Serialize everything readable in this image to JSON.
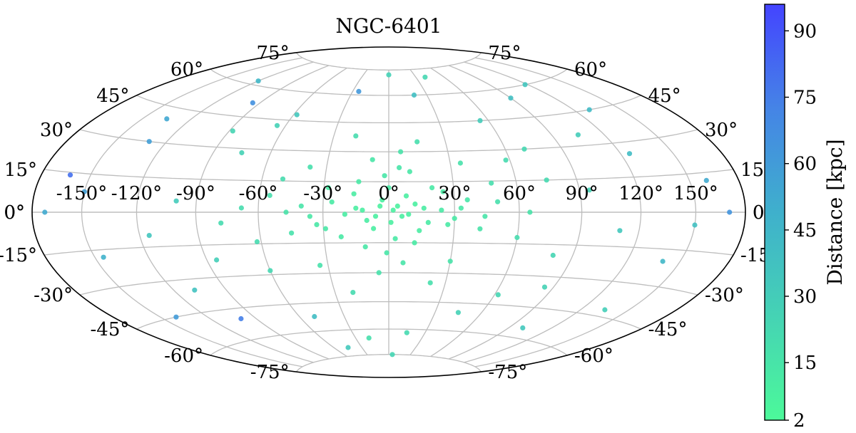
{
  "chart_data": {
    "type": "scatter",
    "projection": "hammer-aitoff",
    "title": "NGC-6401",
    "xlabel": "",
    "ylabel": "",
    "xlim": [
      -180,
      180
    ],
    "ylim": [
      -90,
      90
    ],
    "grid": true,
    "lon_ticks": [
      -150,
      -120,
      -90,
      -60,
      -30,
      0,
      30,
      60,
      90,
      120,
      150
    ],
    "lon_tick_labels": [
      "-150°",
      "-120°",
      "-90°",
      "-60°",
      "-30°",
      "0°",
      "30°",
      "60°",
      "90°",
      "120°",
      "150°"
    ],
    "lat_ticks": [
      -75,
      -60,
      -45,
      -30,
      -15,
      0,
      15,
      30,
      45,
      60,
      75
    ],
    "lat_tick_labels": [
      "-75°",
      "-60°",
      "-45°",
      "-30°",
      "-15°",
      "0°",
      "15°",
      "30°",
      "45°",
      "60°",
      "75°"
    ],
    "colorbar": {
      "label": "Distance [kpc]",
      "min": 2,
      "max": 96,
      "ticks": [
        2,
        15,
        30,
        45,
        60,
        75,
        90
      ],
      "tick_labels": [
        "2",
        "15",
        "30",
        "45",
        "60",
        "75",
        "90"
      ],
      "color_low": "#4cf99a",
      "color_high": "#4444ff"
    },
    "series": [
      {
        "points": [
          {
            "lon": 2,
            "lat": 1,
            "d": 8
          },
          {
            "lon": -4,
            "lat": 3,
            "d": 7
          },
          {
            "lon": 6,
            "lat": -2,
            "d": 9
          },
          {
            "lon": -10,
            "lat": -4,
            "d": 10
          },
          {
            "lon": 12,
            "lat": 4,
            "d": 8
          },
          {
            "lon": -15,
            "lat": 2,
            "d": 9
          },
          {
            "lon": 18,
            "lat": -5,
            "d": 11
          },
          {
            "lon": -20,
            "lat": -1,
            "d": 10
          },
          {
            "lon": 24,
            "lat": 1,
            "d": 12
          },
          {
            "lon": -26,
            "lat": 5,
            "d": 11
          },
          {
            "lon": 30,
            "lat": -3,
            "d": 12
          },
          {
            "lon": -33,
            "lat": -6,
            "d": 13
          },
          {
            "lon": 8,
            "lat": 8,
            "d": 9
          },
          {
            "lon": -7,
            "lat": -8,
            "d": 9
          },
          {
            "lon": 14,
            "lat": -9,
            "d": 10
          },
          {
            "lon": -16,
            "lat": 9,
            "d": 10
          },
          {
            "lon": 0,
            "lat": 12,
            "d": 11
          },
          {
            "lon": 3,
            "lat": -13,
            "d": 12
          },
          {
            "lon": -2,
            "lat": 18,
            "d": 14
          },
          {
            "lon": 5,
            "lat": 22,
            "d": 15
          },
          {
            "lon": -8,
            "lat": 26,
            "d": 14
          },
          {
            "lon": 10,
            "lat": 20,
            "d": 13
          },
          {
            "lon": -1,
            "lat": -20,
            "d": 14
          },
          {
            "lon": 7,
            "lat": -25,
            "d": 15
          },
          {
            "lon": -11,
            "lat": -17,
            "d": 13
          },
          {
            "lon": 36,
            "lat": 6,
            "d": 14
          },
          {
            "lon": -40,
            "lat": 3,
            "d": 15
          },
          {
            "lon": 42,
            "lat": -8,
            "d": 16
          },
          {
            "lon": -45,
            "lat": -10,
            "d": 17
          },
          {
            "lon": 20,
            "lat": 12,
            "d": 12
          },
          {
            "lon": -22,
            "lat": -12,
            "d": 12
          },
          {
            "lon": 1,
            "lat": -5,
            "d": 8
          },
          {
            "lon": -3,
            "lat": 6,
            "d": 8
          },
          {
            "lon": 4,
            "lat": 3,
            "d": 7
          },
          {
            "lon": -6,
            "lat": -2,
            "d": 8
          },
          {
            "lon": 9,
            "lat": -1,
            "d": 9
          },
          {
            "lon": -12,
            "lat": 1,
            "d": 9
          },
          {
            "lon": 16,
            "lat": 2,
            "d": 10
          },
          {
            "lon": 27,
            "lat": -6,
            "d": 12
          },
          {
            "lon": -29,
            "lat": -8,
            "d": 13
          },
          {
            "lon": 50,
            "lat": 5,
            "d": 18
          },
          {
            "lon": -55,
            "lat": 8,
            "d": 19
          },
          {
            "lon": 60,
            "lat": -12,
            "d": 20
          },
          {
            "lon": -62,
            "lat": -14,
            "d": 21
          },
          {
            "lon": 48,
            "lat": 14,
            "d": 19
          },
          {
            "lon": -50,
            "lat": 16,
            "d": 20
          },
          {
            "lon": 35,
            "lat": 24,
            "d": 17
          },
          {
            "lon": -38,
            "lat": 22,
            "d": 18
          },
          {
            "lon": 30,
            "lat": -24,
            "d": 16
          },
          {
            "lon": -34,
            "lat": -26,
            "d": 17
          },
          {
            "lon": 15,
            "lat": 35,
            "d": 19
          },
          {
            "lon": -18,
            "lat": 38,
            "d": 20
          },
          {
            "lon": 22,
            "lat": -35,
            "d": 18
          },
          {
            "lon": -20,
            "lat": -40,
            "d": 21
          },
          {
            "lon": 70,
            "lat": 30,
            "d": 23
          },
          {
            "lon": -75,
            "lat": 28,
            "d": 26
          },
          {
            "lon": 80,
            "lat": -20,
            "d": 24
          },
          {
            "lon": -85,
            "lat": -22,
            "d": 29
          },
          {
            "lon": 95,
            "lat": 10,
            "d": 27
          },
          {
            "lon": -100,
            "lat": 5,
            "d": 31
          },
          {
            "lon": 110,
            "lat": -8,
            "d": 33
          },
          {
            "lon": -115,
            "lat": -10,
            "d": 35
          },
          {
            "lon": 125,
            "lat": 25,
            "d": 41
          },
          {
            "lon": -130,
            "lat": 30,
            "d": 58
          },
          {
            "lon": 140,
            "lat": -20,
            "d": 44
          },
          {
            "lon": -145,
            "lat": -18,
            "d": 48
          },
          {
            "lon": 160,
            "lat": 12,
            "d": 52
          },
          {
            "lon": -162,
            "lat": 14,
            "d": 80
          },
          {
            "lon": 170,
            "lat": 0,
            "d": 64
          },
          {
            "lon": -172,
            "lat": 0,
            "d": 52
          },
          {
            "lon": 55,
            "lat": 45,
            "d": 30
          },
          {
            "lon": -58,
            "lat": 48,
            "d": 34
          },
          {
            "lon": 45,
            "lat": -50,
            "d": 27
          },
          {
            "lon": -50,
            "lat": -52,
            "d": 40
          },
          {
            "lon": 20,
            "lat": 60,
            "d": 39
          },
          {
            "lon": -25,
            "lat": 62,
            "d": 62
          },
          {
            "lon": 15,
            "lat": -62,
            "d": 22
          },
          {
            "lon": -18,
            "lat": -65,
            "d": 18
          },
          {
            "lon": 0,
            "lat": 72,
            "d": 27
          },
          {
            "lon": 5,
            "lat": -75,
            "d": 24
          },
          {
            "lon": 90,
            "lat": 55,
            "d": 39
          },
          {
            "lon": -95,
            "lat": 52,
            "d": 66
          },
          {
            "lon": 100,
            "lat": -55,
            "d": 33
          },
          {
            "lon": -100,
            "lat": -50,
            "d": 74
          },
          {
            "lon": 130,
            "lat": 45,
            "d": 42
          },
          {
            "lon": -135,
            "lat": 40,
            "d": 54
          },
          {
            "lon": 135,
            "lat": -42,
            "d": 29
          },
          {
            "lon": -140,
            "lat": -45,
            "d": 60
          },
          {
            "lon": 65,
            "lat": 0,
            "d": 16
          },
          {
            "lon": -68,
            "lat": 2,
            "d": 20
          },
          {
            "lon": 75,
            "lat": 15,
            "d": 22
          },
          {
            "lon": -78,
            "lat": -5,
            "d": 21
          },
          {
            "lon": 85,
            "lat": -35,
            "d": 26
          },
          {
            "lon": -88,
            "lat": 38,
            "d": 25
          },
          {
            "lon": 105,
            "lat": 35,
            "d": 30
          },
          {
            "lon": -108,
            "lat": -35,
            "d": 37
          },
          {
            "lon": 118,
            "lat": 60,
            "d": 35
          },
          {
            "lon": -120,
            "lat": 62,
            "d": 44
          },
          {
            "lon": 150,
            "lat": -5,
            "d": 38
          },
          {
            "lon": -150,
            "lat": 8,
            "d": 58
          },
          {
            "lon": 40,
            "lat": 70,
            "d": 23
          },
          {
            "lon": -45,
            "lat": -70,
            "d": 32
          },
          {
            "lon": 25,
            "lat": 10,
            "d": 11
          },
          {
            "lon": -28,
            "lat": 12,
            "d": 12
          },
          {
            "lon": 12,
            "lat": -15,
            "d": 11
          },
          {
            "lon": -14,
            "lat": 15,
            "d": 12
          },
          {
            "lon": 33,
            "lat": 2,
            "d": 13
          },
          {
            "lon": -36,
            "lat": -2,
            "d": 13
          },
          {
            "lon": 44,
            "lat": -2,
            "d": 15
          },
          {
            "lon": -47,
            "lat": 0,
            "d": 16
          },
          {
            "lon": 6,
            "lat": 30,
            "d": 16
          },
          {
            "lon": -5,
            "lat": -30,
            "d": 17
          },
          {
            "lon": 58,
            "lat": 25,
            "d": 21
          },
          {
            "lon": -60,
            "lat": -28,
            "d": 23
          },
          {
            "lon": 62,
            "lat": -40,
            "d": 24
          },
          {
            "lon": -65,
            "lat": 42,
            "d": 27
          }
        ]
      }
    ]
  }
}
